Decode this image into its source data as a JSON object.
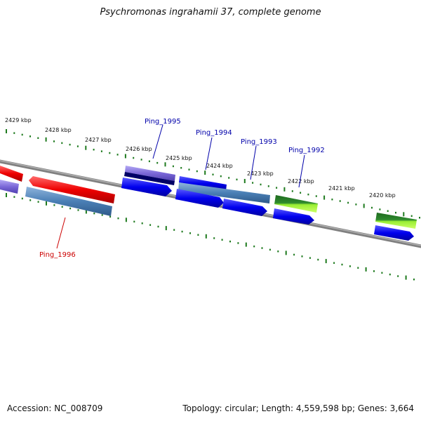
{
  "title": "Psychromonas ingrahamii 37, complete genome",
  "footer": {
    "accession": "Accession: NC_008709",
    "summary": "Topology: circular; Length: 4,559,598 bp; Genes: 3,664"
  },
  "scale_labels": [
    "2429 kbp",
    "2428 kbp",
    "2427 kbp",
    "2426 kbp",
    "2425 kbp",
    "2424 kbp",
    "2423 kbp",
    "2422 kbp",
    "2421 kbp",
    "2420 kbp"
  ],
  "gene_labels": [
    {
      "id": "Ping_1995",
      "color": "#0000aa"
    },
    {
      "id": "Ping_1994",
      "color": "#0000aa"
    },
    {
      "id": "Ping_1993",
      "color": "#0000aa"
    },
    {
      "id": "Ping_1992",
      "color": "#0000aa"
    },
    {
      "id": "Ping_1996",
      "color": "#cc0000"
    }
  ],
  "colors": {
    "backbone": "#808080",
    "ticks": "#1e7a1e",
    "gene_blue": "#0000ee",
    "gene_red": "#ee0000",
    "gene_steel": "#4a7fb5",
    "gene_purple": "#7b68d8",
    "gene_navy": "#000066",
    "gene_green_dark": "#2e8b2e",
    "gene_green_light": "#99ee33"
  }
}
